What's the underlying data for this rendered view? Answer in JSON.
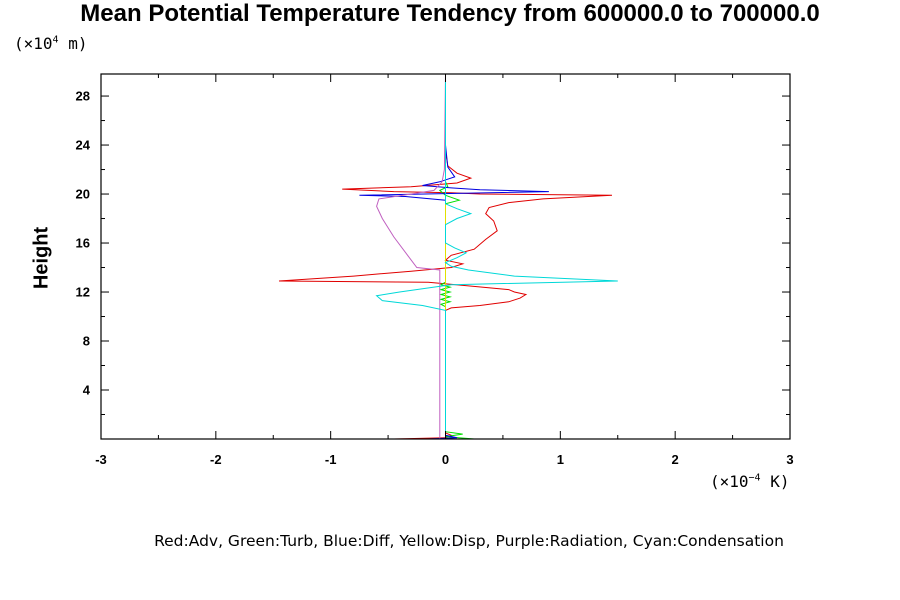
{
  "chart_data": {
    "type": "line",
    "title": "Mean Potential Temperature Tendency from 600000.0 to 700000.0",
    "ylabel": "Height",
    "y_unit": {
      "prefix": "(×10",
      "exp": "4",
      "suffix": " m)"
    },
    "x_unit": {
      "prefix": "(×10",
      "exp": "−4",
      "suffix": " K)"
    },
    "xlim": [
      -3,
      3
    ],
    "ylim": [
      0,
      29.8
    ],
    "x_major_ticks": [
      -3,
      -2,
      -1,
      0,
      1,
      2,
      3
    ],
    "x_tick_labels": [
      "-3",
      "-2",
      "-1",
      "0",
      "1",
      "2",
      "3"
    ],
    "y_major_ticks": [
      4,
      8,
      12,
      16,
      20,
      24,
      28
    ],
    "y_tick_labels": [
      "4",
      "8",
      "12",
      "16",
      "20",
      "24",
      "28"
    ],
    "legend_text": "Red:Adv, Green:Turb, Blue:Diff, Yellow:Disp, Purple:Radiation, Cyan:Condensation",
    "grid": false,
    "series": [
      {
        "name": "Adv",
        "color": "#e00000",
        "points": [
          [
            -0.45,
            0.0
          ],
          [
            0.0,
            0.1
          ],
          [
            0.05,
            0.3
          ],
          [
            0.0,
            0.5
          ],
          [
            0.0,
            10.5
          ],
          [
            0.05,
            10.7
          ],
          [
            0.3,
            10.9
          ],
          [
            0.55,
            11.2
          ],
          [
            0.65,
            11.5
          ],
          [
            0.7,
            11.8
          ],
          [
            0.6,
            12.0
          ],
          [
            0.55,
            12.2
          ],
          [
            0.2,
            12.5
          ],
          [
            -0.15,
            12.8
          ],
          [
            -1.45,
            12.9
          ],
          [
            -0.8,
            13.3
          ],
          [
            -0.3,
            13.7
          ],
          [
            0.05,
            14.0
          ],
          [
            0.15,
            14.3
          ],
          [
            0.0,
            14.6
          ],
          [
            0.05,
            15.0
          ],
          [
            0.25,
            15.5
          ],
          [
            0.35,
            16.3
          ],
          [
            0.45,
            17.0
          ],
          [
            0.42,
            17.8
          ],
          [
            0.35,
            18.4
          ],
          [
            0.38,
            18.9
          ],
          [
            0.55,
            19.3
          ],
          [
            0.85,
            19.6
          ],
          [
            1.45,
            19.9
          ],
          [
            0.3,
            20.0
          ],
          [
            0.05,
            20.1
          ],
          [
            -0.45,
            20.2
          ],
          [
            -0.9,
            20.4
          ],
          [
            -0.3,
            20.6
          ],
          [
            0.1,
            20.9
          ],
          [
            0.22,
            21.3
          ],
          [
            0.1,
            21.7
          ],
          [
            0.02,
            22.3
          ],
          [
            0.0,
            23.5
          ],
          [
            0.0,
            29.8
          ]
        ]
      },
      {
        "name": "Turb",
        "color": "#00e000",
        "points": [
          [
            0.25,
            0.0
          ],
          [
            0.0,
            0.2
          ],
          [
            0.15,
            0.4
          ],
          [
            0.0,
            0.6
          ],
          [
            0.0,
            10.8
          ],
          [
            -0.04,
            11.0
          ],
          [
            0.04,
            11.2
          ],
          [
            -0.04,
            11.4
          ],
          [
            0.04,
            11.6
          ],
          [
            -0.04,
            11.8
          ],
          [
            0.04,
            12.0
          ],
          [
            -0.04,
            12.2
          ],
          [
            0.04,
            12.4
          ],
          [
            -0.04,
            12.6
          ],
          [
            0.0,
            12.8
          ],
          [
            0.0,
            19.2
          ],
          [
            0.12,
            19.5
          ],
          [
            0.0,
            19.9
          ],
          [
            -0.05,
            20.3
          ],
          [
            0.02,
            20.6
          ],
          [
            0.0,
            21.0
          ],
          [
            0.0,
            29.8
          ]
        ]
      },
      {
        "name": "Diff",
        "color": "#0000e0",
        "points": [
          [
            -0.15,
            0.0
          ],
          [
            0.1,
            0.1
          ],
          [
            0.0,
            0.3
          ],
          [
            0.0,
            19.5
          ],
          [
            -0.35,
            19.8
          ],
          [
            -0.75,
            19.9
          ],
          [
            0.1,
            20.05
          ],
          [
            0.9,
            20.2
          ],
          [
            0.3,
            20.35
          ],
          [
            0.05,
            20.5
          ],
          [
            -0.2,
            20.7
          ],
          [
            -0.05,
            21.0
          ],
          [
            0.08,
            21.4
          ],
          [
            0.02,
            22.2
          ],
          [
            0.0,
            24.0
          ],
          [
            0.0,
            29.8
          ]
        ]
      },
      {
        "name": "Disp",
        "color": "#e0e000",
        "points": [
          [
            0.0,
            0.0
          ],
          [
            0.0,
            29.8
          ]
        ]
      },
      {
        "name": "Radiation",
        "color": "#c060c0",
        "points": [
          [
            -0.05,
            0.0
          ],
          [
            -0.05,
            13.8
          ],
          [
            -0.25,
            14.0
          ],
          [
            -0.33,
            15.0
          ],
          [
            -0.45,
            16.5
          ],
          [
            -0.55,
            18.0
          ],
          [
            -0.6,
            19.0
          ],
          [
            -0.58,
            19.6
          ],
          [
            -0.3,
            20.0
          ],
          [
            -0.1,
            20.3
          ],
          [
            -0.03,
            21.0
          ],
          [
            -0.01,
            22.0
          ],
          [
            0.0,
            29.8
          ]
        ]
      },
      {
        "name": "Condensation",
        "color": "#00d8d8",
        "points": [
          [
            0.0,
            0.0
          ],
          [
            0.0,
            10.5
          ],
          [
            -0.2,
            10.9
          ],
          [
            -0.55,
            11.3
          ],
          [
            -0.6,
            11.7
          ],
          [
            -0.4,
            12.0
          ],
          [
            -0.1,
            12.4
          ],
          [
            0.05,
            12.6
          ],
          [
            1.5,
            12.9
          ],
          [
            0.6,
            13.3
          ],
          [
            0.2,
            13.8
          ],
          [
            0.05,
            14.1
          ],
          [
            0.0,
            14.4
          ],
          [
            0.1,
            14.8
          ],
          [
            0.18,
            15.2
          ],
          [
            0.08,
            15.6
          ],
          [
            0.0,
            16.0
          ],
          [
            0.0,
            17.5
          ],
          [
            0.1,
            18.0
          ],
          [
            0.22,
            18.4
          ],
          [
            0.1,
            18.8
          ],
          [
            0.0,
            19.2
          ],
          [
            0.0,
            29.8
          ]
        ]
      }
    ]
  }
}
